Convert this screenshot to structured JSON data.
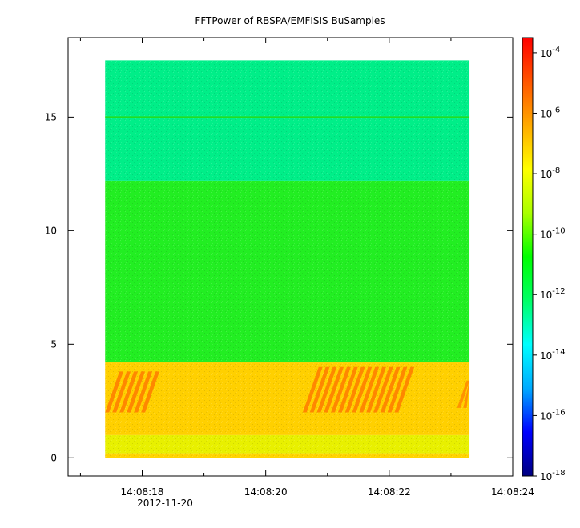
{
  "chart_data": {
    "type": "heatmap",
    "title": "FFTPower of RBSPA/EMFISIS  BuSamples",
    "xlabel": "",
    "ylabel": "",
    "date_label": "2012-11-20",
    "x_range": [
      "14:08:16.8",
      "14:08:24.0"
    ],
    "x_ticks": [
      "14:08:18",
      "14:08:20",
      "14:08:22",
      "14:08:24"
    ],
    "x_minor_ticks": [
      "14:08:17",
      "14:08:19",
      "14:08:21",
      "14:08:23"
    ],
    "y_range": [
      -0.8,
      18.5
    ],
    "y_ticks": [
      0,
      5,
      10,
      15
    ],
    "data_x_range": [
      "14:08:17.4",
      "14:08:23.3"
    ],
    "data_y_range": [
      0,
      17.5
    ],
    "colorbar": {
      "scale": "log",
      "range": [
        "1e-18",
        "1e-3.5"
      ],
      "tick_exponents": [
        "-4",
        "-6",
        "-8",
        "-10",
        "-12",
        "-14",
        "-16",
        "-18"
      ],
      "tick_base": "10",
      "colormap": [
        "#000080",
        "#0000ff",
        "#00aaff",
        "#00ffff",
        "#00ff66",
        "#00ff00",
        "#aaff00",
        "#ffff00",
        "#ffaa00",
        "#ff5500",
        "#ff0000"
      ]
    },
    "bands": [
      {
        "y_from": 0,
        "y_to": 0.2,
        "color": "#ffd400"
      },
      {
        "y_from": 0.2,
        "y_to": 1.0,
        "color": "#e8f000"
      },
      {
        "y_from": 1.0,
        "y_to": 4.2,
        "color": "#ffd000"
      },
      {
        "y_from": 4.2,
        "y_to": 12.2,
        "color": "#22ee22"
      },
      {
        "y_from": 12.2,
        "y_to": 17.5,
        "color": "#00ee88"
      }
    ],
    "lines": [
      {
        "y": 15.0,
        "color": "#22dd22"
      }
    ],
    "bursts": [
      {
        "x_from": "14:08:17.4",
        "x_to": "14:08:18.1",
        "y_from": 2.0,
        "y_to": 3.8,
        "color": "#ff7a00"
      },
      {
        "x_from": "14:08:20.6",
        "x_to": "14:08:22.2",
        "y_from": 2.0,
        "y_to": 4.0,
        "color": "#ff7a00"
      },
      {
        "x_from": "14:08:23.1",
        "x_to": "14:08:23.3",
        "y_from": 2.2,
        "y_to": 3.4,
        "color": "#ff8800"
      }
    ]
  }
}
